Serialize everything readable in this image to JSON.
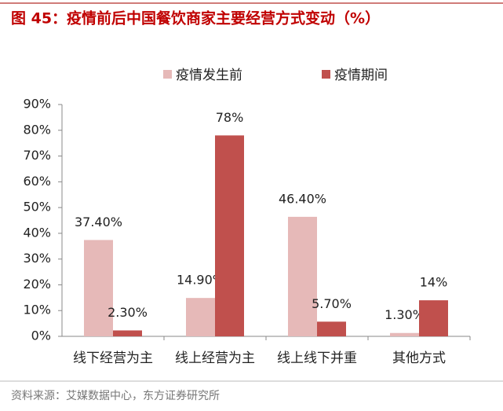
{
  "chart_data": {
    "type": "bar",
    "title": "图 45：疫情前后中国餐饮商家主要经营方式变动（%）",
    "source": "资料来源：艾媒数据中心，东方证券研究所",
    "categories": [
      "线下经营为主",
      "线上经营为主",
      "线上线下并重",
      "其他方式"
    ],
    "series": [
      {
        "name": "疫情发生前",
        "color": "#e6b9b8",
        "values": [
          37.4,
          14.9,
          46.4,
          1.3
        ],
        "value_labels": [
          "37.40%",
          "14.90%",
          "46.40%",
          "1.30%"
        ]
      },
      {
        "name": "疫情期间",
        "color": "#c0504d",
        "values": [
          2.3,
          78,
          5.7,
          14
        ],
        "value_labels": [
          "2.30%",
          "78%",
          "5.70%",
          "14%"
        ]
      }
    ],
    "ylim": [
      0,
      90
    ],
    "yticks": [
      {
        "value": 0,
        "label": "0%"
      },
      {
        "value": 10,
        "label": "10%"
      },
      {
        "value": 20,
        "label": "20%"
      },
      {
        "value": 30,
        "label": "30%"
      },
      {
        "value": 40,
        "label": "40%"
      },
      {
        "value": 50,
        "label": "50%"
      },
      {
        "value": 60,
        "label": "60%"
      },
      {
        "value": 70,
        "label": "70%"
      },
      {
        "value": 80,
        "label": "80%"
      },
      {
        "value": 90,
        "label": "90%"
      }
    ],
    "grid": false
  }
}
